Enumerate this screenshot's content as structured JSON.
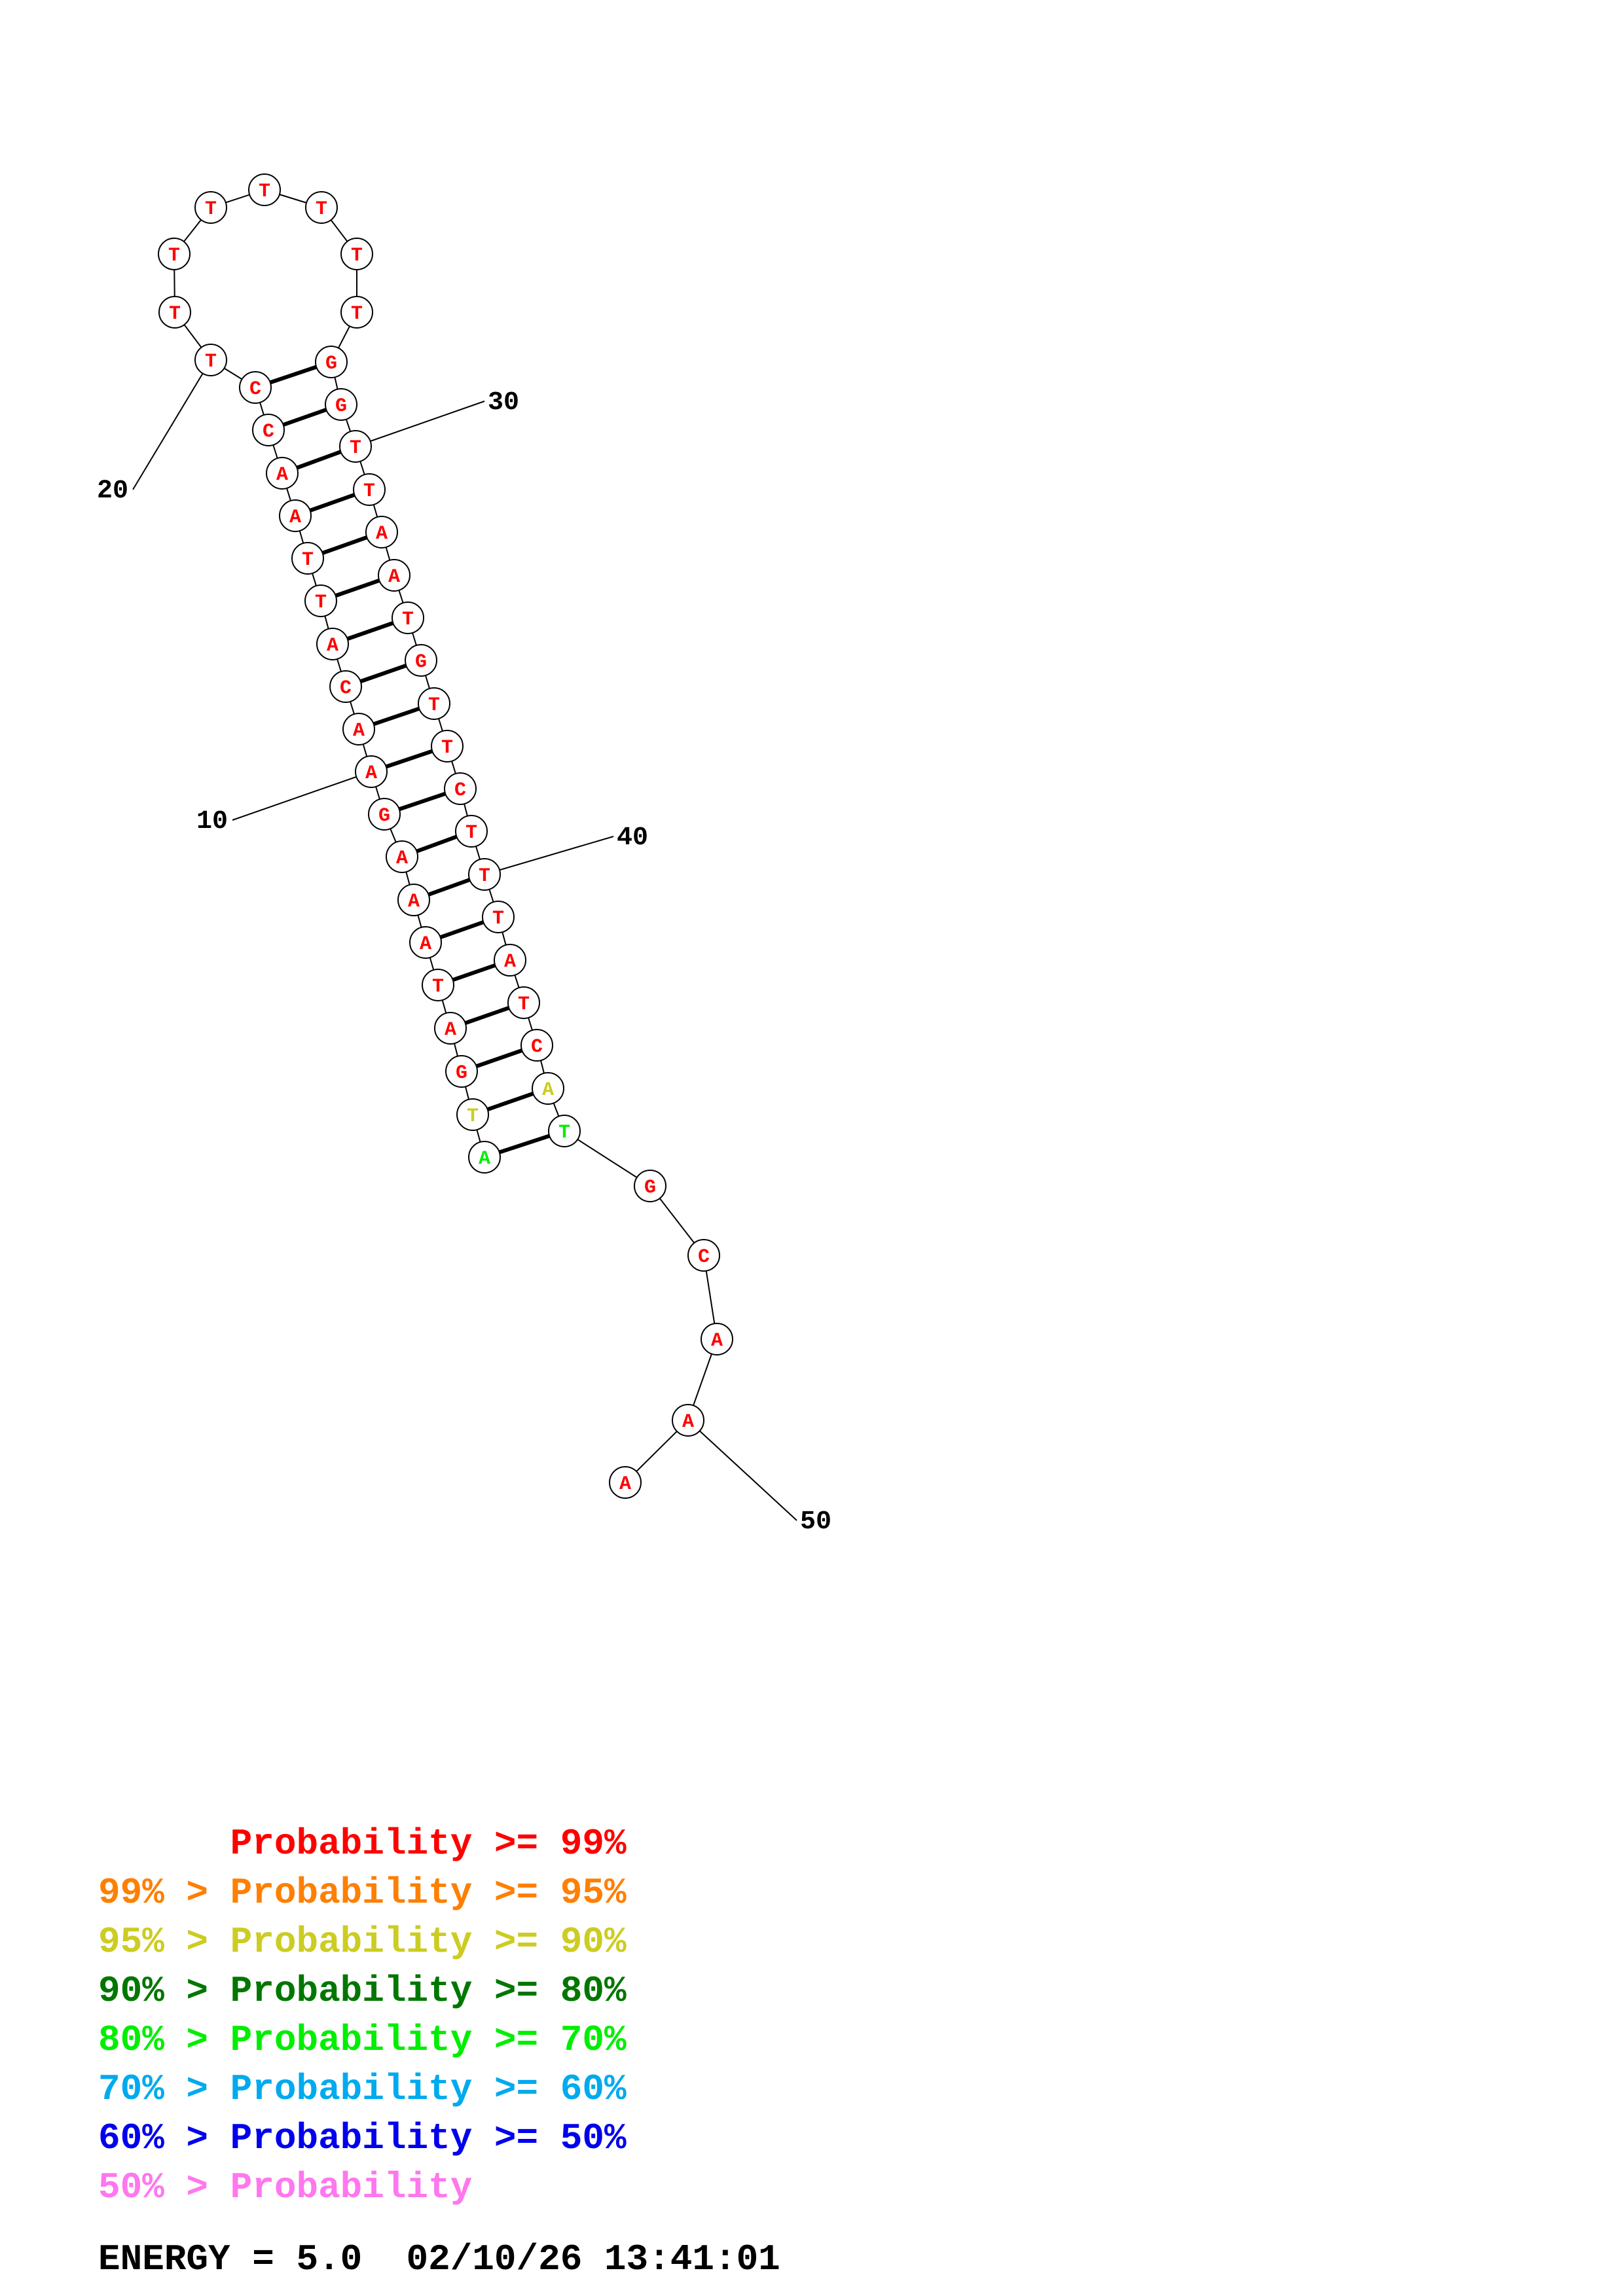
{
  "structure": {
    "nucleotides": [
      {
        "n": 1,
        "base": "A",
        "level": "p70"
      },
      {
        "n": 2,
        "base": "T",
        "level": "p90"
      },
      {
        "n": 3,
        "base": "G",
        "level": "p99"
      },
      {
        "n": 4,
        "base": "A",
        "level": "p99"
      },
      {
        "n": 5,
        "base": "T",
        "level": "p99"
      },
      {
        "n": 6,
        "base": "A",
        "level": "p99"
      },
      {
        "n": 7,
        "base": "A",
        "level": "p99"
      },
      {
        "n": 8,
        "base": "A",
        "level": "p99"
      },
      {
        "n": 9,
        "base": "G",
        "level": "p99"
      },
      {
        "n": 10,
        "base": "A",
        "level": "p99"
      },
      {
        "n": 11,
        "base": "A",
        "level": "p99"
      },
      {
        "n": 12,
        "base": "C",
        "level": "p99"
      },
      {
        "n": 13,
        "base": "A",
        "level": "p99"
      },
      {
        "n": 14,
        "base": "T",
        "level": "p99"
      },
      {
        "n": 15,
        "base": "T",
        "level": "p99"
      },
      {
        "n": 16,
        "base": "A",
        "level": "p99"
      },
      {
        "n": 17,
        "base": "A",
        "level": "p99"
      },
      {
        "n": 18,
        "base": "C",
        "level": "p99"
      },
      {
        "n": 19,
        "base": "C",
        "level": "p99"
      },
      {
        "n": 20,
        "base": "T",
        "level": "p99"
      },
      {
        "n": 21,
        "base": "T",
        "level": "p99"
      },
      {
        "n": 22,
        "base": "T",
        "level": "p99"
      },
      {
        "n": 23,
        "base": "T",
        "level": "p99"
      },
      {
        "n": 24,
        "base": "T",
        "level": "p99"
      },
      {
        "n": 25,
        "base": "T",
        "level": "p99"
      },
      {
        "n": 26,
        "base": "T",
        "level": "p99"
      },
      {
        "n": 27,
        "base": "T",
        "level": "p99"
      },
      {
        "n": 28,
        "base": "G",
        "level": "p99"
      },
      {
        "n": 29,
        "base": "G",
        "level": "p99"
      },
      {
        "n": 30,
        "base": "T",
        "level": "p99"
      },
      {
        "n": 31,
        "base": "T",
        "level": "p99"
      },
      {
        "n": 32,
        "base": "A",
        "level": "p99"
      },
      {
        "n": 33,
        "base": "A",
        "level": "p99"
      },
      {
        "n": 34,
        "base": "T",
        "level": "p99"
      },
      {
        "n": 35,
        "base": "G",
        "level": "p99"
      },
      {
        "n": 36,
        "base": "T",
        "level": "p99"
      },
      {
        "n": 37,
        "base": "T",
        "level": "p99"
      },
      {
        "n": 38,
        "base": "C",
        "level": "p99"
      },
      {
        "n": 39,
        "base": "T",
        "level": "p99"
      },
      {
        "n": 40,
        "base": "T",
        "level": "p99"
      },
      {
        "n": 41,
        "base": "T",
        "level": "p99"
      },
      {
        "n": 42,
        "base": "A",
        "level": "p99"
      },
      {
        "n": 43,
        "base": "T",
        "level": "p99"
      },
      {
        "n": 44,
        "base": "C",
        "level": "p99"
      },
      {
        "n": 45,
        "base": "A",
        "level": "p90"
      },
      {
        "n": 46,
        "base": "T",
        "level": "p70"
      },
      {
        "n": 47,
        "base": "G",
        "level": "p99"
      },
      {
        "n": 48,
        "base": "C",
        "level": "p99"
      },
      {
        "n": 49,
        "base": "A",
        "level": "p99"
      },
      {
        "n": 50,
        "base": "A",
        "level": "p99"
      },
      {
        "n": 51,
        "base": "A",
        "level": "p99"
      }
    ],
    "pairs": [
      [
        1,
        46
      ],
      [
        2,
        45
      ],
      [
        3,
        44
      ],
      [
        4,
        43
      ],
      [
        5,
        42
      ],
      [
        6,
        41
      ],
      [
        7,
        40
      ],
      [
        8,
        39
      ],
      [
        9,
        38
      ],
      [
        10,
        37
      ],
      [
        11,
        36
      ],
      [
        12,
        35
      ],
      [
        13,
        34
      ],
      [
        14,
        33
      ],
      [
        15,
        32
      ],
      [
        16,
        31
      ],
      [
        17,
        30
      ],
      [
        18,
        29
      ],
      [
        19,
        28
      ]
    ],
    "position_labels": [
      {
        "n": 10,
        "text": "10"
      },
      {
        "n": 20,
        "text": "20"
      },
      {
        "n": 30,
        "text": "30"
      },
      {
        "n": 40,
        "text": "40"
      },
      {
        "n": 50,
        "text": "50"
      }
    ]
  },
  "colors": {
    "p99": "#ff0000",
    "p95": "#ff7f00",
    "p90": "#cccc22",
    "p80": "#007700",
    "p70": "#00ee00",
    "p60": "#00aaee",
    "p50": "#0000ee",
    "plow": "#ff77ee"
  },
  "legend": [
    {
      "prefix": "    ",
      "label": "Probability",
      "suffix": " >= 99%",
      "level": "p99"
    },
    {
      "prefix": "99% > ",
      "label": "Probability",
      "suffix": " >= 95%",
      "level": "p95"
    },
    {
      "prefix": "95% > ",
      "label": "Probability",
      "suffix": " >= 90%",
      "level": "p90"
    },
    {
      "prefix": "90% > ",
      "label": "Probability",
      "suffix": " >= 80%",
      "level": "p80"
    },
    {
      "prefix": "80% > ",
      "label": "Probability",
      "suffix": " >= 70%",
      "level": "p70"
    },
    {
      "prefix": "70% > ",
      "label": "Probability",
      "suffix": " >= 60%",
      "level": "p60"
    },
    {
      "prefix": "60% > ",
      "label": "Probability",
      "suffix": " >= 50%",
      "level": "p50"
    },
    {
      "prefix": "50% > ",
      "label": "Probability",
      "suffix": "",
      "level": "plow"
    }
  ],
  "footer": {
    "energy": "ENERGY = 5.0",
    "timestamp": "02/10/26 13:41:01"
  }
}
